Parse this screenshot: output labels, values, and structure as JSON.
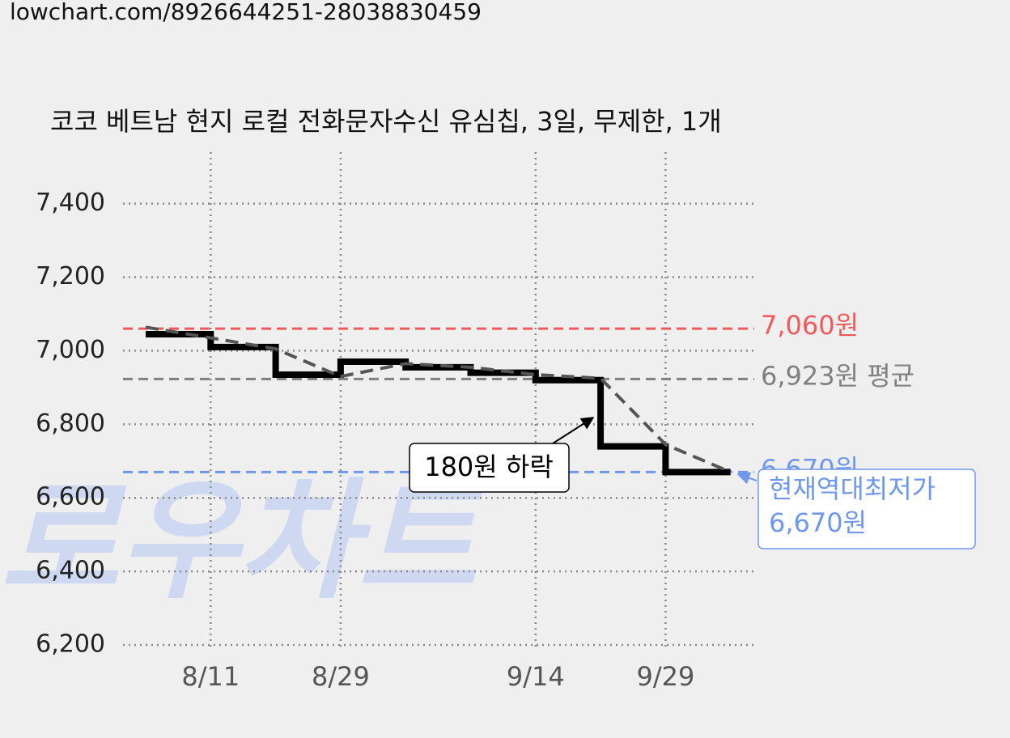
{
  "url": "lowchart.com/8926644251-28038830459",
  "watermark": "로우차트",
  "chart_data": {
    "type": "line",
    "title": "코코 베트남 현지 로컬 전화문자수신 유심칩, 3일, 무제한, 1개",
    "categories": [
      null,
      "8/11",
      null,
      "8/29",
      null,
      null,
      "9/14",
      null,
      "9/29",
      null
    ],
    "series": [
      {
        "color": "#000000",
        "step": true,
        "values": [
          7045,
          7010,
          6935,
          6970,
          6955,
          6940,
          6920,
          6740,
          6670,
          6670
        ]
      },
      {
        "color": "#555555",
        "dashed": true,
        "values": [
          7064,
          7035,
          7005,
          6930,
          6965,
          6955,
          6935,
          6925,
          6745,
          6670
        ]
      }
    ],
    "ylim": [
      6200,
      7540
    ],
    "yticks": [
      {
        "value": 6200,
        "label": "6,200"
      },
      {
        "value": 6400,
        "label": "6,400"
      },
      {
        "value": 6600,
        "label": "6,600"
      },
      {
        "value": 6800,
        "label": "6,800"
      },
      {
        "value": 7000,
        "label": "7,000"
      },
      {
        "value": 7200,
        "label": "7,200"
      },
      {
        "value": 7400,
        "label": "7,400"
      }
    ],
    "grid": true,
    "hlines": [
      {
        "value": 7060,
        "label": "7,060원",
        "color": "#f05a5a"
      },
      {
        "value": 6923,
        "label": "6,923원 평균",
        "color": "#808080"
      },
      {
        "value": 6670,
        "label": "6,670원",
        "color": "#6f97ee"
      }
    ],
    "annotations": [
      {
        "lines": [
          "180원 하락"
        ],
        "color": "#000000"
      },
      {
        "lines": [
          "현재역대최저가",
          "6,670원"
        ],
        "color": "#6f97ee"
      }
    ]
  }
}
